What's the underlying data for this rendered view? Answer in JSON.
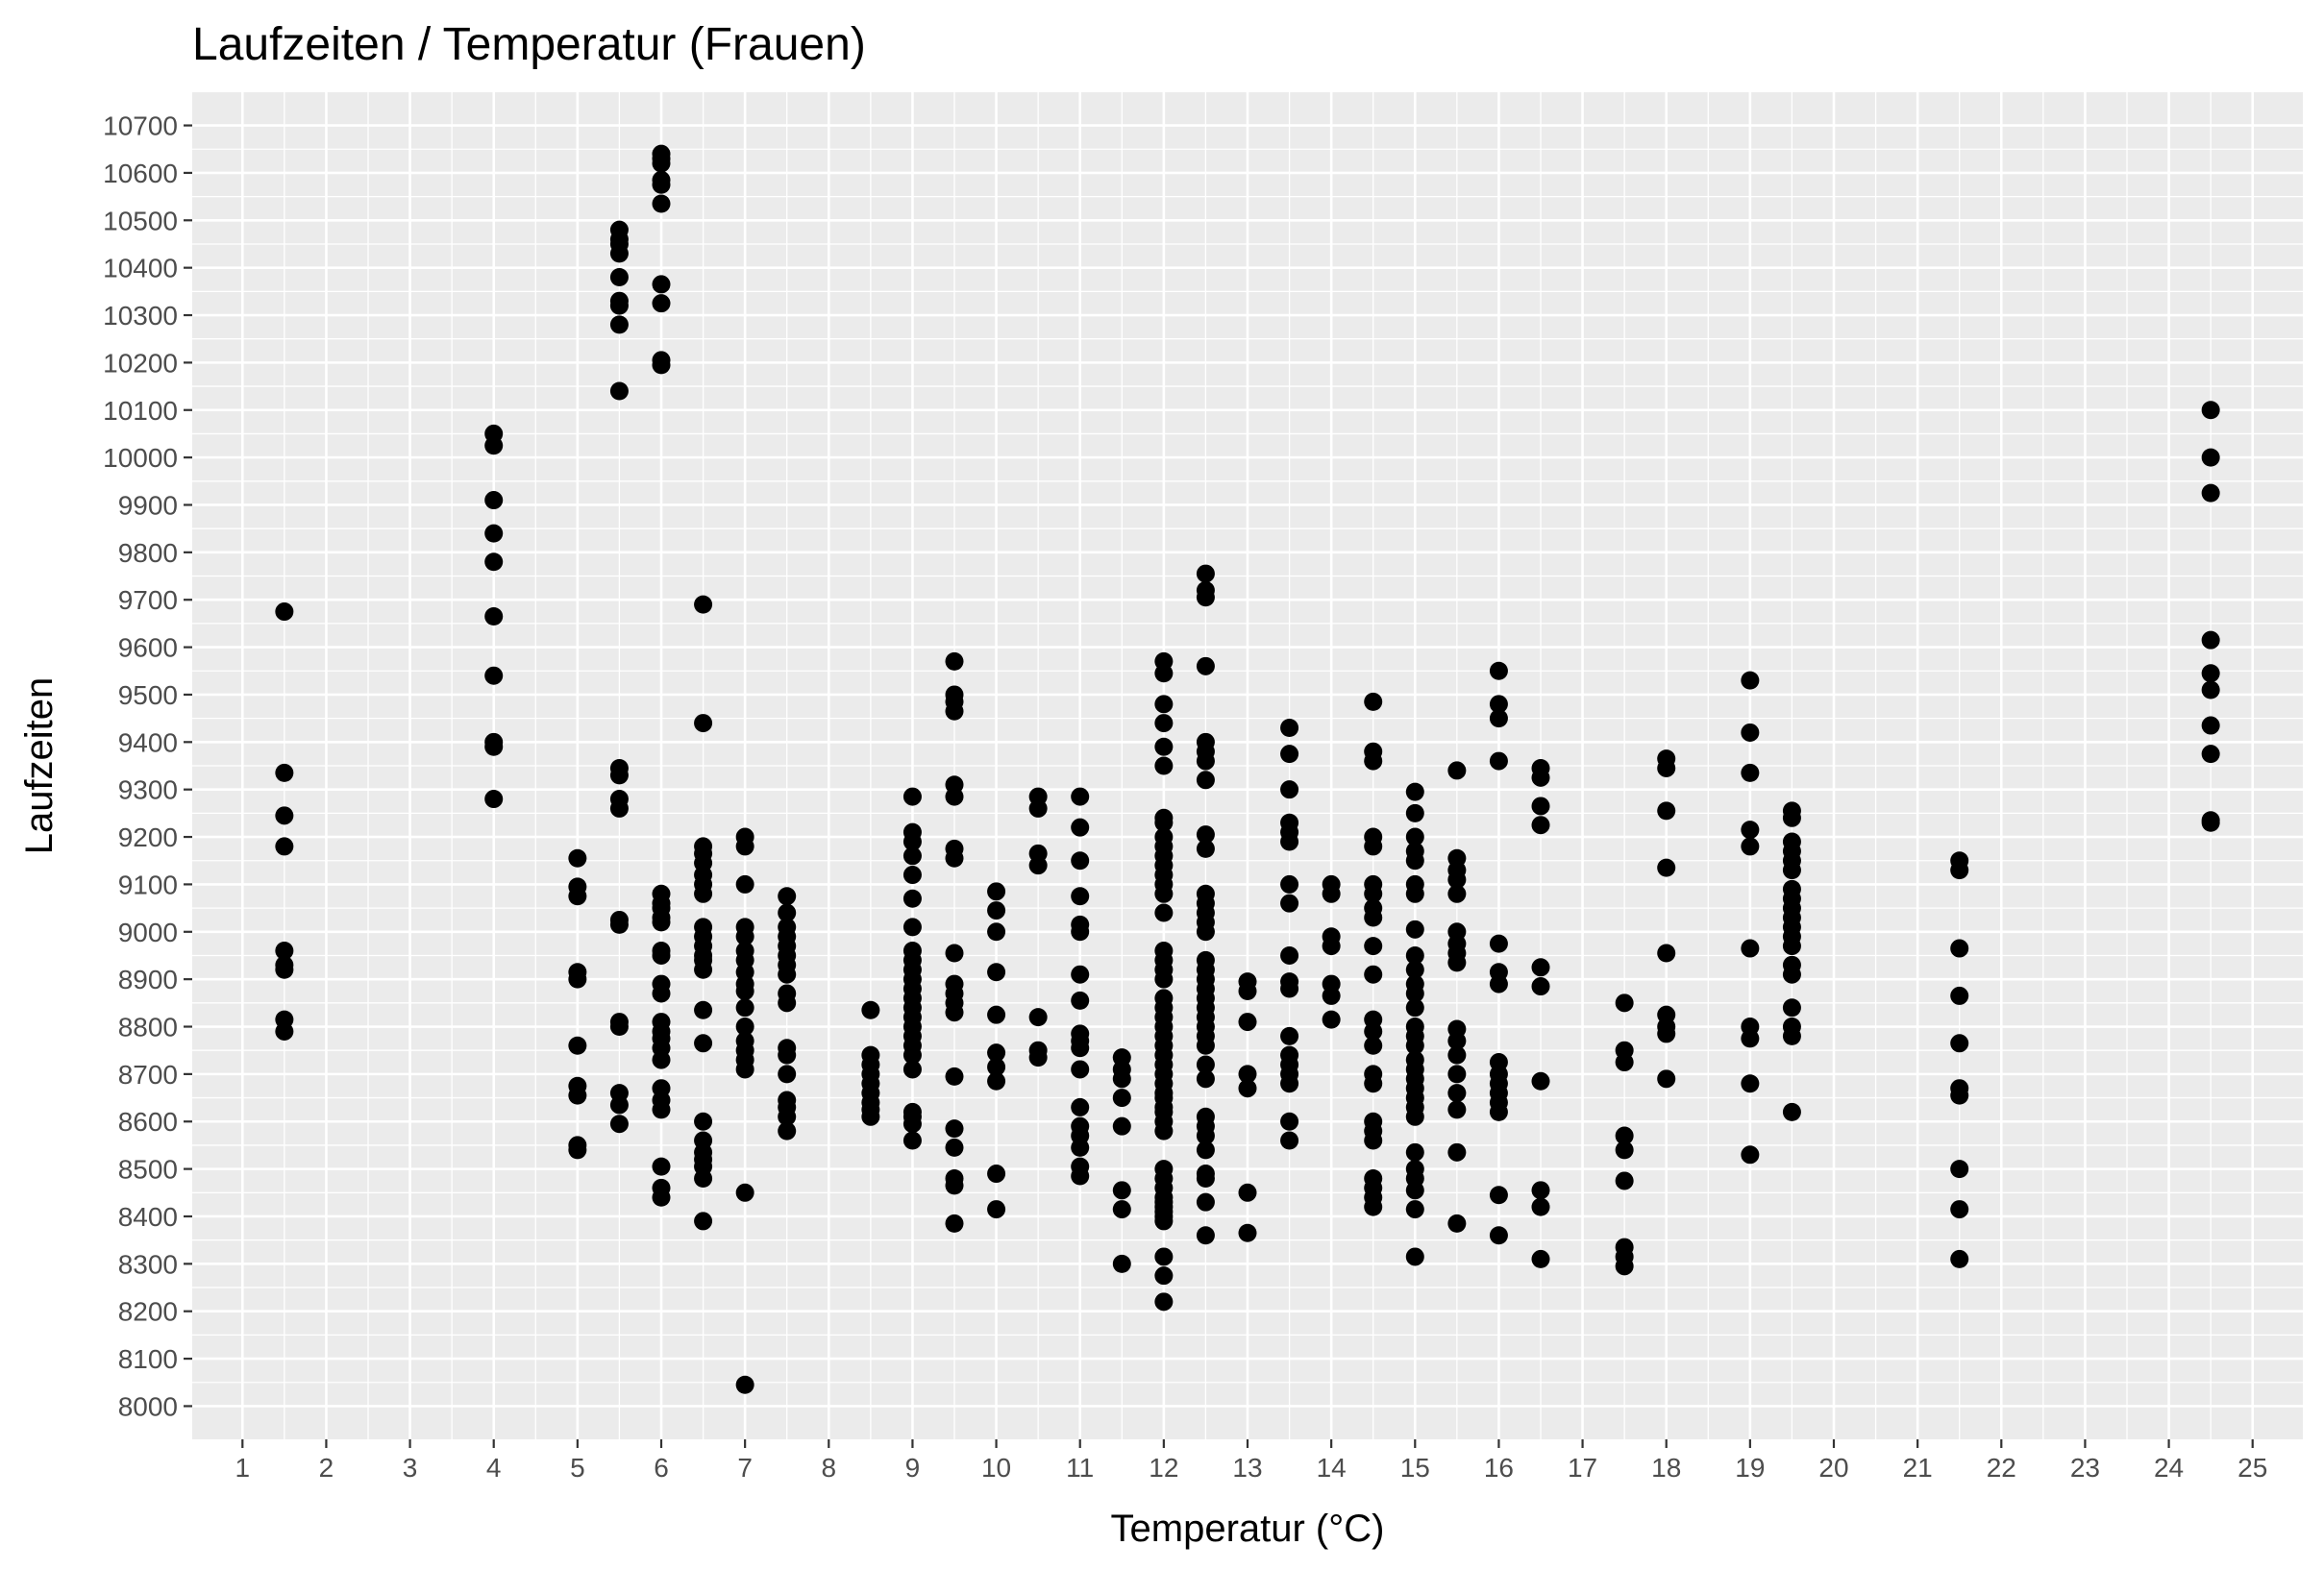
{
  "chart_data": {
    "type": "scatter",
    "title": "Laufzeiten / Temperatur (Frauen)",
    "xlabel": "Temperatur (°C)",
    "ylabel": "Laufzeiten",
    "xlim": [
      0.4,
      25.6
    ],
    "ylim": [
      7930,
      10770
    ],
    "x_ticks": [
      1,
      2,
      3,
      4,
      5,
      6,
      7,
      8,
      9,
      10,
      11,
      12,
      13,
      14,
      15,
      16,
      17,
      18,
      19,
      20,
      21,
      22,
      23,
      24,
      25
    ],
    "y_ticks": [
      8000,
      8100,
      8200,
      8300,
      8400,
      8500,
      8600,
      8700,
      8800,
      8900,
      9000,
      9100,
      9200,
      9300,
      9400,
      9500,
      9600,
      9700,
      9800,
      9900,
      10000,
      10100,
      10200,
      10300,
      10400,
      10500,
      10600,
      10700
    ],
    "grid": true,
    "background": "#ebebeb",
    "grid_color": "#ffffff",
    "point_color": "#000000",
    "groups": [
      {
        "x": 1.5,
        "y": [
          8790,
          8815,
          8920,
          8930,
          8960,
          9180,
          9245,
          9335,
          9675
        ]
      },
      {
        "x": 4,
        "y": [
          9280,
          9390,
          9400,
          9540,
          9665,
          9780,
          9840,
          9910,
          10025,
          10050
        ]
      },
      {
        "x": 5,
        "y": [
          8540,
          8550,
          8655,
          8675,
          8760,
          8900,
          8915,
          9075,
          9095,
          9155
        ]
      },
      {
        "x": 5.5,
        "y": [
          8595,
          8635,
          8660,
          8800,
          8810,
          9015,
          9025,
          9260,
          9280,
          9330,
          9345,
          10140,
          10280,
          10320,
          10330,
          10380,
          10430,
          10450,
          10460,
          10480
        ]
      },
      {
        "x": 6,
        "y": [
          8440,
          8460,
          8505,
          8625,
          8645,
          8670,
          8730,
          8755,
          8775,
          8790,
          8810,
          8870,
          8890,
          8950,
          8960,
          9020,
          9030,
          9050,
          9060,
          9080,
          10195,
          10205,
          10325,
          10365,
          10535,
          10575,
          10585,
          10620,
          10630,
          10640
        ]
      },
      {
        "x": 6.5,
        "y": [
          8390,
          8480,
          8505,
          8520,
          8535,
          8560,
          8600,
          8765,
          8835,
          8920,
          8940,
          8950,
          8970,
          8990,
          9010,
          9080,
          9100,
          9120,
          9145,
          9165,
          9180,
          9440,
          9690
        ]
      },
      {
        "x": 7,
        "y": [
          8045,
          8450,
          8710,
          8730,
          8750,
          8770,
          8800,
          8840,
          8875,
          8890,
          8915,
          8940,
          8960,
          8990,
          9010,
          9100,
          9180,
          9200
        ]
      },
      {
        "x": 7.5,
        "y": [
          8580,
          8610,
          8630,
          8645,
          8700,
          8740,
          8755,
          8850,
          8870,
          8910,
          8930,
          8950,
          8970,
          8990,
          9010,
          9040,
          9075
        ]
      },
      {
        "x": 8.5,
        "y": [
          8610,
          8625,
          8640,
          8660,
          8680,
          8700,
          8720,
          8740,
          8835
        ]
      },
      {
        "x": 9,
        "y": [
          8560,
          8595,
          8610,
          8620,
          8710,
          8740,
          8760,
          8780,
          8800,
          8820,
          8840,
          8860,
          8880,
          8900,
          8920,
          8940,
          8960,
          9010,
          9070,
          9120,
          9160,
          9190,
          9210,
          9285
        ]
      },
      {
        "x": 9.5,
        "y": [
          8385,
          8465,
          8480,
          8545,
          8585,
          8695,
          8830,
          8850,
          8870,
          8890,
          8955,
          9155,
          9175,
          9285,
          9310,
          9465,
          9485,
          9500,
          9570
        ]
      },
      {
        "x": 10,
        "y": [
          8415,
          8490,
          8685,
          8715,
          8745,
          8825,
          8915,
          9000,
          9045,
          9085
        ]
      },
      {
        "x": 10.5,
        "y": [
          8735,
          8750,
          8820,
          9140,
          9165,
          9260,
          9285
        ]
      },
      {
        "x": 11,
        "y": [
          8485,
          8505,
          8545,
          8570,
          8590,
          8630,
          8710,
          8755,
          8770,
          8785,
          8855,
          8910,
          9000,
          9015,
          9075,
          9150,
          9220,
          9285
        ]
      },
      {
        "x": 11.5,
        "y": [
          8300,
          8415,
          8455,
          8590,
          8650,
          8690,
          8710,
          8735
        ]
      },
      {
        "x": 12,
        "y": [
          8220,
          8275,
          8315,
          8390,
          8400,
          8410,
          8420,
          8430,
          8440,
          8460,
          8480,
          8500,
          8580,
          8600,
          8620,
          8630,
          8650,
          8660,
          8680,
          8700,
          8720,
          8740,
          8760,
          8780,
          8800,
          8820,
          8840,
          8860,
          8900,
          8920,
          8940,
          8960,
          9040,
          9080,
          9100,
          9120,
          9140,
          9160,
          9180,
          9200,
          9230,
          9240,
          9350,
          9390,
          9440,
          9480,
          9545,
          9570
        ]
      },
      {
        "x": 12.5,
        "y": [
          8360,
          8430,
          8480,
          8490,
          8540,
          8570,
          8590,
          8610,
          8690,
          8720,
          8760,
          8780,
          8800,
          8820,
          8840,
          8860,
          8880,
          8900,
          8920,
          8940,
          9000,
          9020,
          9040,
          9060,
          9080,
          9175,
          9205,
          9320,
          9360,
          9380,
          9400,
          9560,
          9705,
          9720,
          9755
        ]
      },
      {
        "x": 13,
        "y": [
          8365,
          8450,
          8670,
          8700,
          8810,
          8875,
          8895
        ]
      },
      {
        "x": 13.5,
        "y": [
          8560,
          8600,
          8680,
          8700,
          8720,
          8740,
          8780,
          8880,
          8895,
          8950,
          9060,
          9100,
          9190,
          9210,
          9230,
          9300,
          9375,
          9430
        ]
      },
      {
        "x": 14,
        "y": [
          8815,
          8865,
          8890,
          8970,
          8990,
          9080,
          9100
        ]
      },
      {
        "x": 14.5,
        "y": [
          8420,
          8440,
          8460,
          8480,
          8560,
          8580,
          8600,
          8680,
          8700,
          8760,
          8790,
          8815,
          8910,
          8970,
          9030,
          9050,
          9080,
          9100,
          9180,
          9200,
          9360,
          9380,
          9485
        ]
      },
      {
        "x": 15,
        "y": [
          8315,
          8415,
          8455,
          8480,
          8500,
          8535,
          8610,
          8630,
          8650,
          8670,
          8690,
          8710,
          8730,
          8760,
          8780,
          8800,
          8840,
          8870,
          8890,
          8920,
          8950,
          9005,
          9080,
          9100,
          9150,
          9170,
          9200,
          9250,
          9295
        ]
      },
      {
        "x": 15.5,
        "y": [
          8385,
          8535,
          8625,
          8660,
          8700,
          8740,
          8770,
          8795,
          8935,
          8955,
          8975,
          9000,
          9080,
          9110,
          9130,
          9155,
          9340
        ]
      },
      {
        "x": 16,
        "y": [
          8360,
          8445,
          8620,
          8640,
          8660,
          8680,
          8700,
          8725,
          8890,
          8915,
          8975,
          9360,
          9450,
          9480,
          9550
        ]
      },
      {
        "x": 16.5,
        "y": [
          8310,
          8420,
          8455,
          8685,
          8885,
          8925,
          9225,
          9265,
          9325,
          9345
        ]
      },
      {
        "x": 17.5,
        "y": [
          8295,
          8315,
          8335,
          8475,
          8540,
          8570,
          8725,
          8750,
          8850
        ]
      },
      {
        "x": 18,
        "y": [
          8690,
          8785,
          8800,
          8825,
          8955,
          9135,
          9255,
          9345,
          9365
        ]
      },
      {
        "x": 19,
        "y": [
          8530,
          8680,
          8775,
          8800,
          8965,
          9180,
          9215,
          9335,
          9420,
          9530
        ]
      },
      {
        "x": 19.5,
        "y": [
          8620,
          8780,
          8800,
          8840,
          8910,
          8930,
          8970,
          8990,
          9010,
          9030,
          9050,
          9070,
          9090,
          9130,
          9150,
          9170,
          9190,
          9240,
          9255
        ]
      },
      {
        "x": 21.5,
        "y": [
          8310,
          8415,
          8500,
          8655,
          8670,
          8765,
          8865,
          8965,
          9130,
          9150
        ]
      },
      {
        "x": 24.5,
        "y": [
          9230,
          9235,
          9375,
          9435,
          9510,
          9545,
          9615,
          9925,
          10000,
          10100
        ]
      }
    ]
  }
}
